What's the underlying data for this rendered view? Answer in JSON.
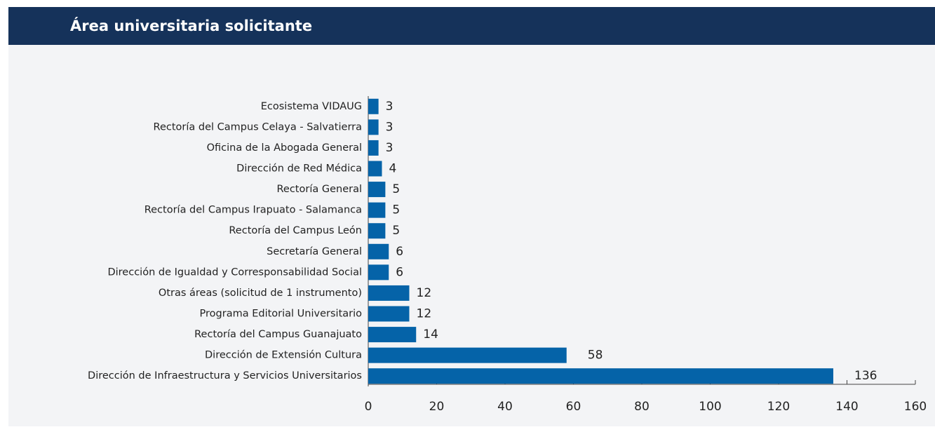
{
  "chart_data": {
    "type": "bar",
    "orientation": "horizontal",
    "title": "Área universitaria solicitante",
    "categories": [
      "Ecosistema VIDAUG",
      "Rectoría del Campus Celaya - Salvatierra",
      "Oficina de la Abogada General",
      "Dirección de Red Médica",
      "Rectoría General",
      "Rectoría del Campus Irapuato - Salamanca",
      "Rectoría del Campus León",
      "Secretaría General",
      "Dirección de Igualdad y Corresponsabilidad Social",
      "Otras áreas (solicitud de 1 instrumento)",
      "Programa Editorial Universitario",
      "Rectoría del Campus Guanajuato",
      "Dirección de Extensión Cultura",
      "Dirección de Infraestructura y Servicios Universitarios"
    ],
    "values": [
      3,
      3,
      3,
      4,
      5,
      5,
      5,
      6,
      6,
      12,
      12,
      14,
      58,
      136
    ],
    "color": "#0563a8",
    "xlim": [
      0,
      160
    ],
    "xticks": [
      0,
      20,
      40,
      60,
      80,
      100,
      120,
      140,
      160
    ]
  }
}
